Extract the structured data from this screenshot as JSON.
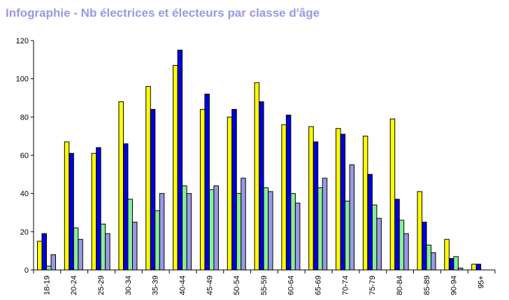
{
  "chart_data": {
    "type": "bar",
    "title": "Infographie - Nb électrices et électeurs par classe d'âge",
    "xlabel": "",
    "ylabel": "",
    "ylim": [
      0,
      120
    ],
    "yticks": [
      0,
      20,
      40,
      60,
      80,
      100,
      120
    ],
    "grid": false,
    "legend": "none",
    "categories": [
      "18-19",
      "20-24",
      "25-29",
      "30-34",
      "35-39",
      "40-44",
      "45-49",
      "50-54",
      "55-59",
      "60-64",
      "65-69",
      "70-74",
      "75-79",
      "80-84",
      "85-89",
      "90-94",
      "95+"
    ],
    "series": [
      {
        "color": "#ffff00",
        "values": [
          15,
          67,
          61,
          88,
          96,
          107,
          84,
          80,
          98,
          76,
          75,
          74,
          70,
          79,
          41,
          16,
          3
        ]
      },
      {
        "color": "#0000dd",
        "values": [
          19,
          61,
          64,
          66,
          84,
          115,
          92,
          84,
          88,
          81,
          67,
          71,
          50,
          37,
          25,
          6,
          3
        ]
      },
      {
        "color": "#88ee99",
        "values": [
          2,
          22,
          24,
          37,
          31,
          44,
          42,
          40,
          43,
          40,
          43,
          36,
          34,
          26,
          13,
          7,
          0
        ]
      },
      {
        "color": "#9999e6",
        "values": [
          8,
          16,
          19,
          25,
          40,
          40,
          44,
          48,
          41,
          35,
          48,
          55,
          27,
          19,
          9,
          1,
          0
        ]
      }
    ]
  }
}
